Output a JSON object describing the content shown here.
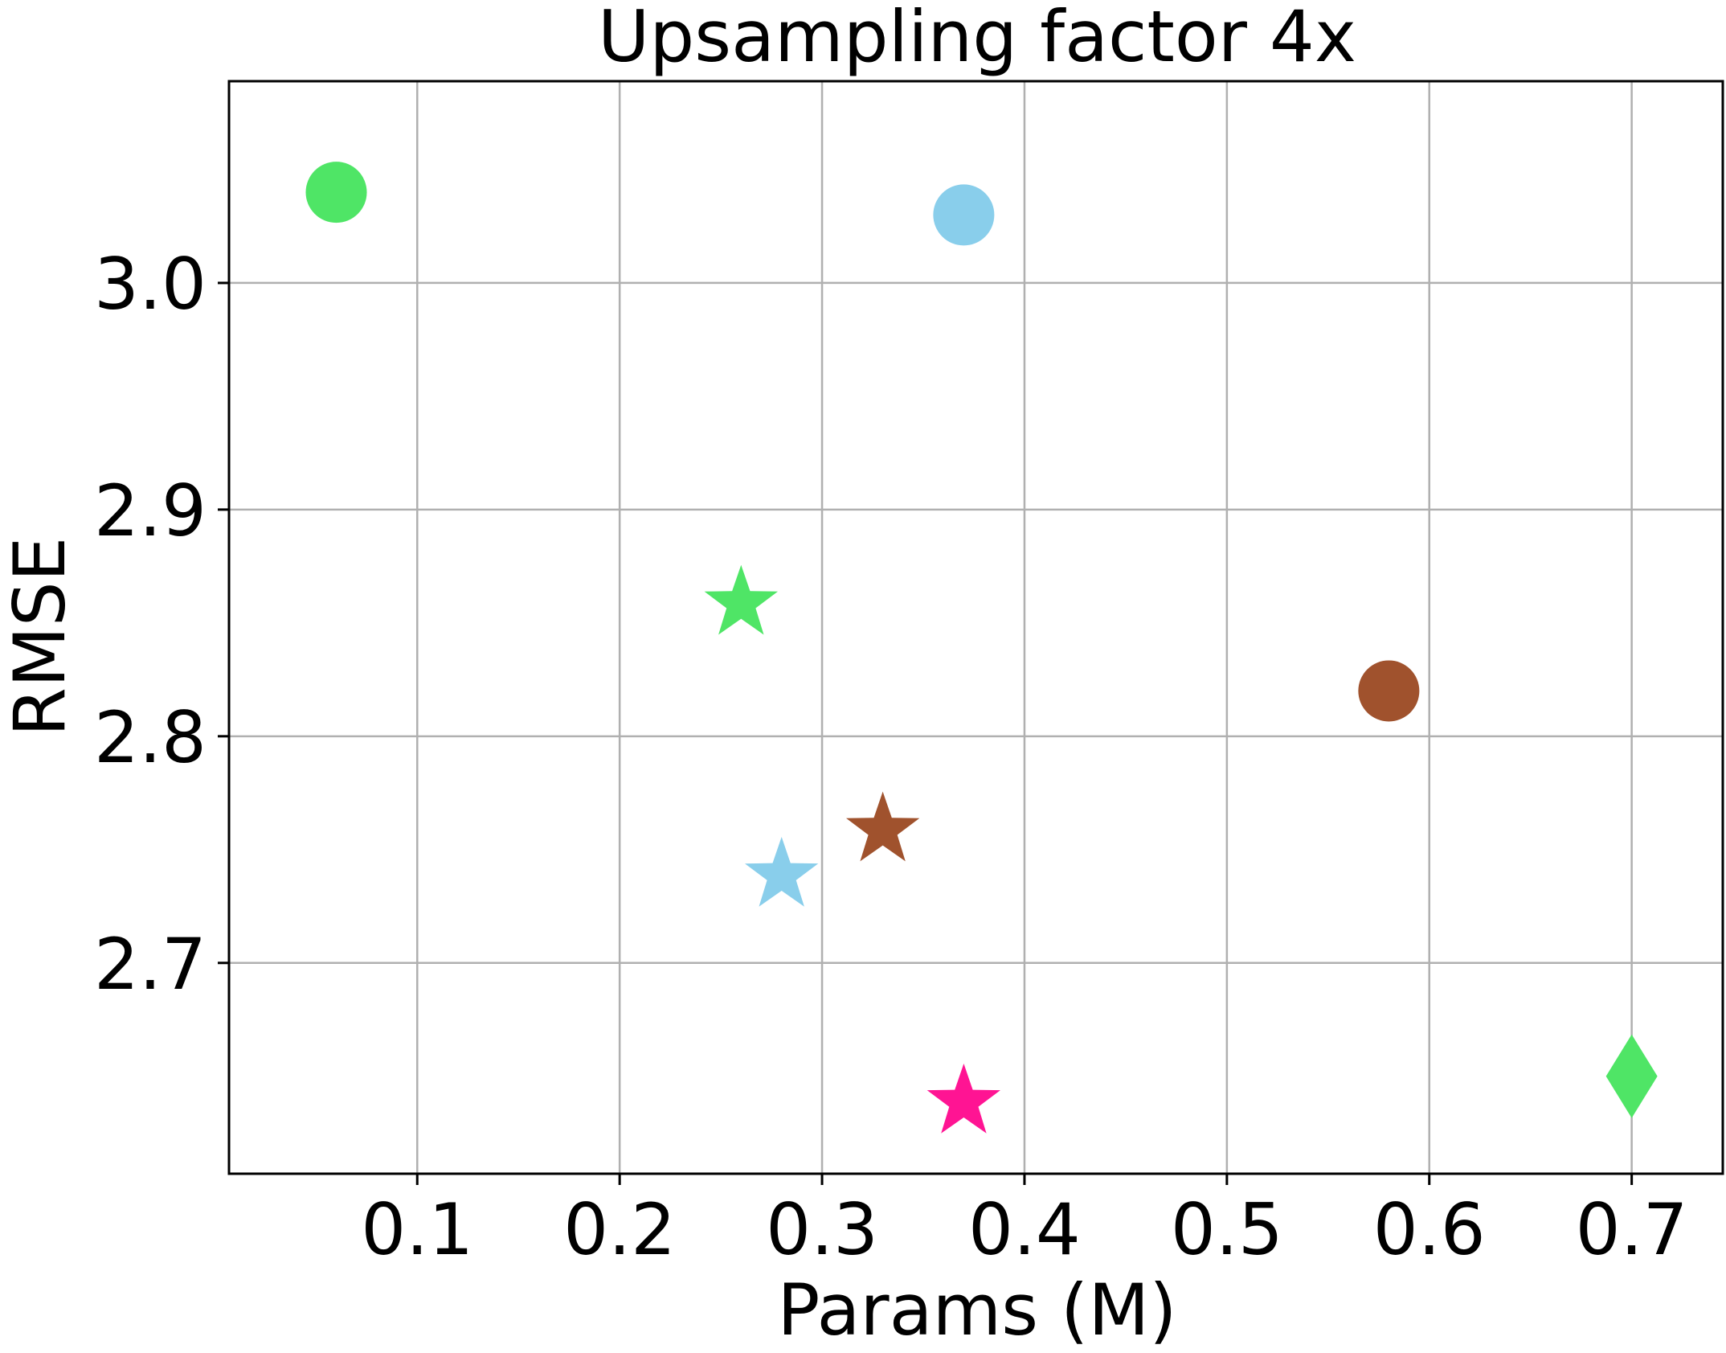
{
  "chart_data": {
    "type": "scatter",
    "title": "Upsampling factor 4x",
    "xlabel": "Params (M)",
    "ylabel": "RMSE",
    "xlim": [
      0.007,
      0.745
    ],
    "ylim": [
      2.607,
      3.089
    ],
    "xticks": [
      0.1,
      0.2,
      0.3,
      0.4,
      0.5,
      0.6,
      0.7
    ],
    "xtick_labels": [
      "0.1",
      "0.2",
      "0.3",
      "0.4",
      "0.5",
      "0.6",
      "0.7"
    ],
    "yticks": [
      2.7,
      2.8,
      2.9,
      3.0
    ],
    "ytick_labels": [
      "2.7",
      "2.8",
      "2.9",
      "3.0"
    ],
    "grid": true,
    "points": [
      {
        "x": 0.06,
        "y": 3.04,
        "marker": "circle",
        "color": "#4fe566"
      },
      {
        "x": 0.37,
        "y": 3.03,
        "marker": "circle",
        "color": "#89ceeb"
      },
      {
        "x": 0.26,
        "y": 2.86,
        "marker": "star",
        "color": "#4fe566"
      },
      {
        "x": 0.58,
        "y": 2.82,
        "marker": "circle",
        "color": "#a0522d"
      },
      {
        "x": 0.33,
        "y": 2.76,
        "marker": "star",
        "color": "#a0522d"
      },
      {
        "x": 0.28,
        "y": 2.74,
        "marker": "star",
        "color": "#89ceeb"
      },
      {
        "x": 0.37,
        "y": 2.64,
        "marker": "star",
        "color": "#ff1493"
      },
      {
        "x": 0.7,
        "y": 2.65,
        "marker": "diamond",
        "color": "#4fe566"
      }
    ]
  }
}
